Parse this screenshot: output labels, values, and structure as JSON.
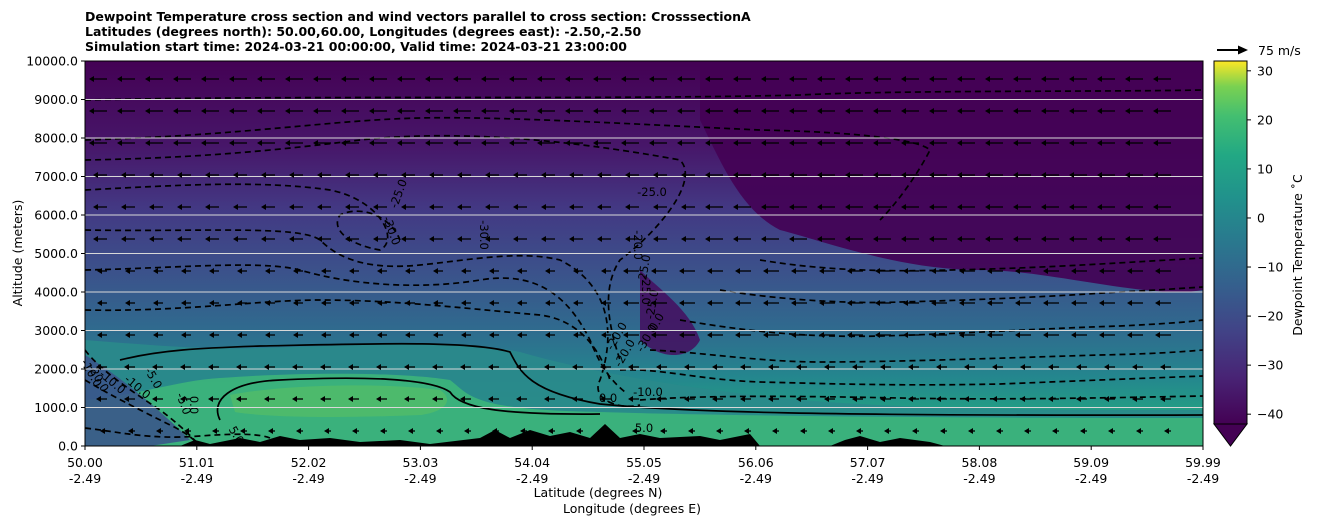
{
  "title_lines": [
    "Dewpoint Temperature cross section and wind vectors parallel to cross section: CrosssectionA",
    "Latitudes (degrees north): 50.00,60.00, Longitudes (degrees east): -2.50,-2.50",
    "Simulation start time: 2024-03-21 00:00:00, Valid time: 2024-03-21 23:00:00"
  ],
  "chart_data": {
    "type": "heatmap",
    "title": "Dewpoint Temperature cross section and wind vectors parallel to cross section: CrosssectionA",
    "ylabel": "Altitude (meters)",
    "xlabel_lines": [
      "Latitude (degrees N)",
      "Longitude (degrees E)"
    ],
    "ylim": [
      0,
      10000
    ],
    "y_ticks": [
      "0.0",
      "1000.0",
      "2000.0",
      "3000.0",
      "4000.0",
      "5000.0",
      "6000.0",
      "7000.0",
      "8000.0",
      "9000.0",
      "10000.0"
    ],
    "x_ticks": [
      {
        "lat": "50.00",
        "lon": "-2.49"
      },
      {
        "lat": "51.01",
        "lon": "-2.49"
      },
      {
        "lat": "52.02",
        "lon": "-2.49"
      },
      {
        "lat": "53.03",
        "lon": "-2.49"
      },
      {
        "lat": "54.04",
        "lon": "-2.49"
      },
      {
        "lat": "55.05",
        "lon": "-2.49"
      },
      {
        "lat": "56.06",
        "lon": "-2.49"
      },
      {
        "lat": "57.07",
        "lon": "-2.49"
      },
      {
        "lat": "58.08",
        "lon": "-2.49"
      },
      {
        "lat": "59.09",
        "lon": "-2.49"
      },
      {
        "lat": "59.99",
        "lon": "-2.49"
      }
    ],
    "grid": "horizontal",
    "colorbar": {
      "label": "Dewpoint Temperature ˚C",
      "ticks": [
        "−40",
        "−30",
        "−20",
        "−10",
        "0",
        "10",
        "20",
        "30"
      ],
      "range": [
        -42,
        32
      ],
      "extend": "min",
      "colormap": "viridis"
    },
    "wind_reference": {
      "label": "75 m/s"
    },
    "contour_labels": [
      "-25.0",
      "-30.0",
      "-25.0",
      "-30.0",
      "-20.0",
      "-25.0",
      "-10.0",
      "-25.0",
      "-20.0",
      "-25.0",
      "-30.0",
      "-5.0",
      "-10.0",
      "-20.0",
      "0.0",
      "-10.0",
      "0.0",
      "5.0",
      "5.0",
      "-5.0",
      "0.0",
      "-20.0",
      "-10.0"
    ],
    "field_approx": [
      {
        "alt": 9000,
        "dewpoint": -42
      },
      {
        "alt": 7000,
        "dewpoint": -35
      },
      {
        "alt": 5000,
        "dewpoint": -30
      },
      {
        "alt": 3000,
        "dewpoint": -20
      },
      {
        "alt": 2000,
        "dewpoint": -10
      },
      {
        "alt": 1000,
        "dewpoint": 5
      },
      {
        "alt": 0,
        "dewpoint": 8
      }
    ]
  }
}
